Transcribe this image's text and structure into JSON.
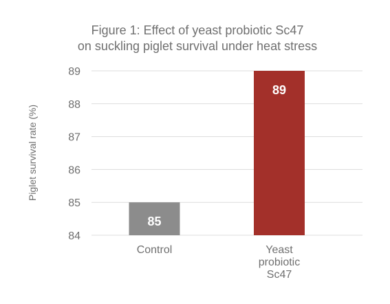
{
  "chart_data": {
    "type": "bar",
    "title": [
      "Figure 1: Effect of yeast probiotic Sc47",
      "on suckling piglet survival under heat stress"
    ],
    "ylabel": "Piglet survival rate (%)",
    "xlabel": "",
    "categories": [
      [
        "Control"
      ],
      [
        "Yeast",
        "probiotic",
        "Sc47"
      ]
    ],
    "values": [
      85,
      89
    ],
    "data_labels": [
      "85",
      "89"
    ],
    "bar_colors": [
      "#8c8c8c",
      "#a3302a"
    ],
    "ylim": [
      84,
      89
    ],
    "yticks": [
      84,
      85,
      86,
      87,
      88,
      89
    ],
    "ytick_labels": [
      "84",
      "85",
      "86",
      "87",
      "88",
      "89"
    ],
    "grid": true,
    "legend": "none"
  }
}
